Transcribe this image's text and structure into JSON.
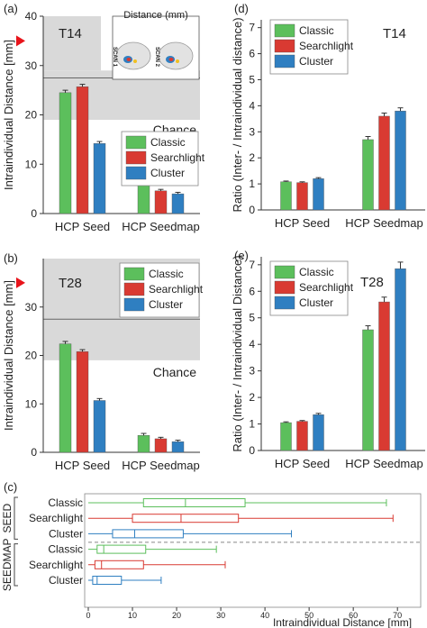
{
  "colors": {
    "classic": "#5cbf5c",
    "searchlight": "#d93a32",
    "cluster": "#2f7fc1",
    "chance": "#d9d9d9",
    "marker": "#e8141b"
  },
  "legend_labels": [
    "Classic",
    "Searchlight",
    "Cluster"
  ],
  "chart_data": [
    {
      "type": "bar",
      "panel_label": "(a)",
      "title": "T14",
      "ylabel": "Intraindividual Distance [mm]",
      "categories": [
        "HCP Seed",
        "HCP Seedmap"
      ],
      "ylim": [
        0,
        40
      ],
      "yticks": [
        0,
        10,
        20,
        30,
        40
      ],
      "series": [
        {
          "name": "Classic",
          "values": [
            24.5,
            6.3
          ],
          "errors": [
            0.5,
            0.4
          ]
        },
        {
          "name": "Searchlight",
          "values": [
            25.7,
            4.6
          ],
          "errors": [
            0.5,
            0.3
          ]
        },
        {
          "name": "Cluster",
          "values": [
            14.2,
            4.0
          ],
          "errors": [
            0.4,
            0.3
          ]
        }
      ],
      "chance_band": [
        19,
        29
      ],
      "chance_line": 27.5,
      "chance_label": "Chance",
      "marker_value": 35,
      "inset": {
        "title": "Distance (mm)",
        "labels": [
          "SCAN 1",
          "SCAN 2"
        ]
      }
    },
    {
      "type": "bar",
      "panel_label": "(b)",
      "title": "T28",
      "ylabel": "Intraindividual Distance [mm]",
      "categories": [
        "HCP Seed",
        "HCP Seedmap"
      ],
      "ylim": [
        0,
        40
      ],
      "yticks": [
        0,
        10,
        20,
        30
      ],
      "series": [
        {
          "name": "Classic",
          "values": [
            22.4,
            3.5
          ],
          "errors": [
            0.5,
            0.4
          ]
        },
        {
          "name": "Searchlight",
          "values": [
            20.8,
            2.8
          ],
          "errors": [
            0.4,
            0.3
          ]
        },
        {
          "name": "Cluster",
          "values": [
            10.7,
            2.2
          ],
          "errors": [
            0.4,
            0.3
          ]
        }
      ],
      "chance_band": [
        19,
        40
      ],
      "chance_line": 27.5,
      "chance_label": "Chance",
      "marker_value": 35
    },
    {
      "type": "bar",
      "panel_label": "(d)",
      "title": "T14",
      "ylabel": "Ratio (Inter- / Intraindividual distance)",
      "categories": [
        "HCP Seed",
        "HCP Seedmap"
      ],
      "ylim": [
        0,
        7.3
      ],
      "yticks": [
        0,
        1,
        2,
        3,
        4,
        5,
        6,
        7
      ],
      "series": [
        {
          "name": "Classic",
          "values": [
            1.08,
            2.7
          ],
          "errors": [
            0.03,
            0.12
          ]
        },
        {
          "name": "Searchlight",
          "values": [
            1.05,
            3.6
          ],
          "errors": [
            0.03,
            0.12
          ]
        },
        {
          "name": "Cluster",
          "values": [
            1.2,
            3.8
          ],
          "errors": [
            0.04,
            0.12
          ]
        }
      ]
    },
    {
      "type": "bar",
      "panel_label": "(e)",
      "title": "T28",
      "ylabel": "Ratio (Inter- / Intraindividual Distance)",
      "categories": [
        "HCP Seed",
        "HCP Seedmap"
      ],
      "ylim": [
        0,
        7.3
      ],
      "yticks": [
        0,
        1,
        2,
        3,
        4,
        5,
        6,
        7
      ],
      "series": [
        {
          "name": "Classic",
          "values": [
            1.05,
            4.55
          ],
          "errors": [
            0.03,
            0.15
          ]
        },
        {
          "name": "Searchlight",
          "values": [
            1.1,
            5.6
          ],
          "errors": [
            0.03,
            0.18
          ]
        },
        {
          "name": "Cluster",
          "values": [
            1.35,
            6.85
          ],
          "errors": [
            0.05,
            0.25
          ]
        }
      ]
    },
    {
      "type": "boxplot",
      "panel_label": "(c)",
      "xlabel": "Intraindividual Distance [mm]",
      "xlim": [
        0,
        72
      ],
      "xticks": [
        0,
        10,
        20,
        30,
        40,
        50,
        60,
        70
      ],
      "groups": [
        {
          "name": "SEED",
          "rows": [
            {
              "name": "Classic",
              "min": 0,
              "q1": 12.5,
              "median": 22,
              "q3": 35.5,
              "max": 67.5
            },
            {
              "name": "Searchlight",
              "min": 0,
              "q1": 10,
              "median": 21,
              "q3": 34,
              "max": 69
            },
            {
              "name": "Cluster",
              "min": 0,
              "q1": 5.5,
              "median": 10.5,
              "q3": 21.5,
              "max": 46
            }
          ]
        },
        {
          "name": "SEEDMAP",
          "rows": [
            {
              "name": "Classic",
              "min": 0,
              "q1": 2,
              "median": 3.5,
              "q3": 13,
              "max": 29
            },
            {
              "name": "Searchlight",
              "min": 0,
              "q1": 1.5,
              "median": 3,
              "q3": 12.5,
              "max": 31
            },
            {
              "name": "Cluster",
              "min": 0,
              "q1": 1,
              "median": 2,
              "q3": 7.5,
              "max": 16.5
            }
          ]
        }
      ]
    }
  ]
}
